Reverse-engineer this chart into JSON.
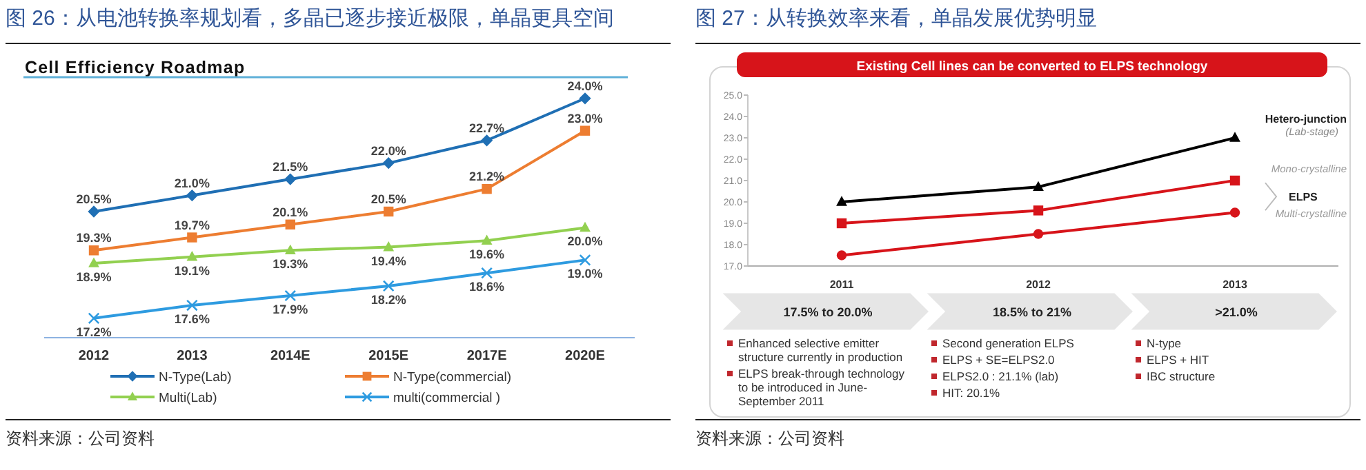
{
  "chart_data": [
    {
      "type": "line",
      "title": "图 26：从电池转换率规划看，多晶已逐步接近极限，单晶更具空间",
      "subtitle": "Cell Efficiency Roadmap",
      "categories": [
        "2012",
        "2013",
        "2014E",
        "2015E",
        "2017E",
        "2020E"
      ],
      "series": [
        {
          "name": "N-Type(Lab)",
          "color": "#1f6fb4",
          "marker": "diamond",
          "values": [
            20.5,
            21.0,
            21.5,
            22.0,
            22.7,
            24.0
          ],
          "value_labels": [
            "20.5%",
            "21.0%",
            "21.5%",
            "22.0%",
            "22.7%",
            "24.0%"
          ]
        },
        {
          "name": "N-Type(commercial)",
          "color": "#ed7d31",
          "marker": "square",
          "values": [
            19.3,
            19.7,
            20.1,
            20.5,
            21.2,
            23.0
          ],
          "value_labels": [
            "19.3%",
            "19.7%",
            "20.1%",
            "20.5%",
            "21.2%",
            "23.0%"
          ]
        },
        {
          "name": "Multi(Lab)",
          "color": "#92d050",
          "marker": "triangle",
          "values": [
            18.9,
            19.1,
            19.3,
            19.4,
            19.6,
            20.0
          ],
          "value_labels": [
            "18.9%",
            "19.1%",
            "19.3%",
            "19.4%",
            "19.6%",
            "20.0%"
          ]
        },
        {
          "name": "multi(commercial )",
          "color": "#2e9be0",
          "marker": "cross",
          "values": [
            17.2,
            17.6,
            17.9,
            18.2,
            18.6,
            19.0
          ],
          "value_labels": [
            "17.2%",
            "17.6%",
            "17.9%",
            "18.2%",
            "18.6%",
            "19.0%"
          ]
        }
      ],
      "legend": "bottom",
      "grid": false,
      "annotations": [
        "资料来源：公司资料"
      ]
    },
    {
      "type": "line",
      "title": "图 27：从转换效率来看，单晶发展优势明显",
      "subtitle": "Existing Cell lines can be converted to ELPS technology",
      "categories": [
        "2011",
        "2012",
        "2013"
      ],
      "series": [
        {
          "name": "Hetero-junction",
          "color": "#000000",
          "marker": "triangle",
          "values": [
            20.0,
            20.7,
            23.0
          ]
        },
        {
          "name": "Mono-crystalline",
          "color": "#d7141a",
          "marker": "square",
          "values": [
            19.0,
            19.6,
            21.0
          ]
        },
        {
          "name": "Multi-crystalline",
          "color": "#d7141a",
          "marker": "circle",
          "values": [
            17.5,
            18.5,
            19.5
          ]
        }
      ],
      "ylim": [
        17,
        25
      ],
      "yticks": [
        {
          "value": 17,
          "label": "17.0"
        },
        {
          "value": 18,
          "label": "18.0"
        },
        {
          "value": 19,
          "label": "19.0"
        },
        {
          "value": 20,
          "label": "20.0"
        },
        {
          "value": 21,
          "label": "21.0"
        },
        {
          "value": 22,
          "label": "22.0"
        },
        {
          "value": 23,
          "label": "23.0"
        },
        {
          "value": 24,
          "label": "24.0"
        },
        {
          "value": 25,
          "label": "25.0"
        }
      ],
      "grid": false,
      "annotations": [
        "(Lab-stage)",
        "ELPS",
        "17.5% to 20.0%",
        "18.5% to 21%",
        ">21.0%",
        "Enhanced selective emitter structure currently in production",
        "ELPS break-through technology to be introduced in June-September 2011",
        "Second generation ELPS",
        "ELPS + SE=ELPS2.0",
        "ELPS2.0 : 21.1% (lab)",
        "HIT: 20.1%",
        "N-type",
        "ELPS + HIT",
        "IBC structure",
        "资料来源：公司资料"
      ]
    }
  ]
}
